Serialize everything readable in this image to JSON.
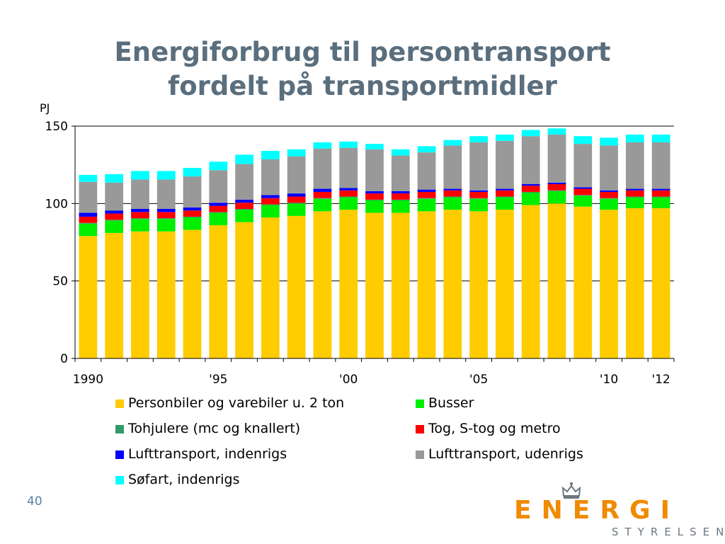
{
  "page": {
    "title_line1": "Energiforbrug til persontransport",
    "title_line2": "fordelt på transportmidler",
    "page_number": "40"
  },
  "logo": {
    "word": "ENERGI",
    "sub": "STYRELSEN",
    "emblem_icon": "crown-icon"
  },
  "chart_data": {
    "type": "bar",
    "stacked": true,
    "unit_label": "PJ",
    "ylim": [
      0,
      150
    ],
    "yticks": [
      0,
      50,
      100,
      150
    ],
    "grid": true,
    "legend_position": "bottom",
    "categories": [
      "1990",
      "1991",
      "1992",
      "1993",
      "1994",
      "1995",
      "1996",
      "1997",
      "1998",
      "1999",
      "2000",
      "2001",
      "2002",
      "2003",
      "2004",
      "2005",
      "2006",
      "2007",
      "2008",
      "2009",
      "2010",
      "2011",
      "2012"
    ],
    "x_tick_labels": [
      {
        "category": "1990",
        "label": "1990"
      },
      {
        "category": "1995",
        "label": "'95"
      },
      {
        "category": "2000",
        "label": "'00"
      },
      {
        "category": "2005",
        "label": "'05"
      },
      {
        "category": "2010",
        "label": "'10"
      },
      {
        "category": "2012",
        "label": "'12"
      }
    ],
    "series": [
      {
        "name": "Personbiler og varebiler u. 2 ton",
        "color": "#ffcc00",
        "values": [
          79,
          81,
          82,
          82,
          83,
          86,
          88,
          91,
          92,
          95,
          96,
          94,
          94,
          95,
          96,
          95,
          96,
          99,
          100,
          98,
          96,
          97,
          97
        ]
      },
      {
        "name": "Busser",
        "color": "#00ee00",
        "values": [
          8,
          8,
          8,
          8,
          8,
          8,
          8,
          8,
          8,
          8,
          8,
          8,
          8,
          8,
          8,
          8,
          8,
          8,
          8,
          7,
          7,
          7,
          7
        ]
      },
      {
        "name": "Tohjulere (mc og knallert)",
        "color": "#339966",
        "values": [
          0.5,
          0.5,
          0.5,
          0.5,
          0.5,
          0.5,
          0.5,
          0.5,
          0.5,
          0.5,
          0.5,
          0.5,
          0.5,
          0.5,
          0.5,
          0.5,
          0.5,
          0.5,
          0.5,
          0.5,
          0.5,
          0.5,
          0.5
        ]
      },
      {
        "name": "Tog, S-tog og metro",
        "color": "#ff0000",
        "values": [
          4,
          4,
          4,
          4,
          4,
          4,
          4,
          4,
          4,
          4,
          4,
          4,
          4,
          4,
          4,
          4,
          4,
          4,
          4,
          4,
          4,
          4,
          4
        ]
      },
      {
        "name": "Lufttransport, indenrigs",
        "color": "#0000ff",
        "values": [
          2.5,
          2,
          2,
          2,
          2,
          2,
          2,
          2,
          2,
          2,
          1.5,
          1.5,
          1.5,
          1.5,
          1,
          1,
          1,
          1,
          1,
          1,
          1,
          1,
          1
        ]
      },
      {
        "name": "Lufttransport, udenrigs",
        "color": "#999999",
        "values": [
          20,
          18,
          19,
          19,
          20,
          21,
          23,
          23,
          24,
          26,
          26,
          27,
          23,
          24,
          28,
          31,
          31,
          31,
          31,
          28,
          29,
          30,
          30
        ]
      },
      {
        "name": "Søfart, indenrigs",
        "color": "#00ffff",
        "values": [
          4.5,
          5.5,
          5.5,
          5.5,
          5.5,
          5.5,
          6,
          5.5,
          4.5,
          4,
          4,
          3.5,
          4,
          4,
          3.5,
          4,
          4,
          4,
          4,
          5,
          5,
          5,
          5
        ]
      }
    ]
  }
}
